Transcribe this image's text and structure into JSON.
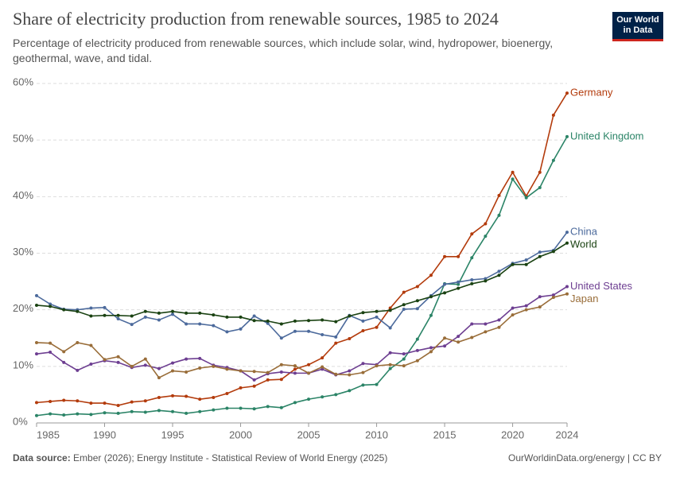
{
  "chart_data": {
    "type": "line",
    "title": "Share of electricity production from renewable sources, 1985 to 2024",
    "subtitle": "Percentage of electricity produced from renewable sources, which include solar, wind, hydropower, bioenergy, geothermal, wave, and tidal.",
    "logo": "Our World in Data",
    "source_label": "Data source:",
    "source": "Ember (2026); Energy Institute - Statistical Review of World Energy (2025)",
    "credit": "OurWorldinData.org/energy | CC BY",
    "x": [
      1985,
      1986,
      1987,
      1988,
      1989,
      1990,
      1991,
      1992,
      1993,
      1994,
      1995,
      1996,
      1997,
      1998,
      1999,
      2000,
      2001,
      2002,
      2003,
      2004,
      2005,
      2006,
      2007,
      2008,
      2009,
      2010,
      2011,
      2012,
      2013,
      2014,
      2015,
      2016,
      2017,
      2018,
      2019,
      2020,
      2021,
      2022,
      2023,
      2024
    ],
    "xlim": [
      1985,
      2024
    ],
    "xticks": [
      1985,
      1990,
      1995,
      2000,
      2005,
      2010,
      2015,
      2020,
      2024
    ],
    "ylim": [
      0,
      60
    ],
    "yticks": [
      {
        "value": 0,
        "label": "0%"
      },
      {
        "value": 10,
        "label": "10%"
      },
      {
        "value": 20,
        "label": "20%"
      },
      {
        "value": 30,
        "label": "30%"
      },
      {
        "value": 40,
        "label": "40%"
      },
      {
        "value": 50,
        "label": "50%"
      },
      {
        "value": 60,
        "label": "60%"
      }
    ],
    "grid": true,
    "series": [
      {
        "name": "Germany",
        "color": "#b33b0c",
        "values": [
          3.6,
          3.8,
          4.0,
          3.9,
          3.5,
          3.5,
          3.1,
          3.7,
          3.9,
          4.5,
          4.8,
          4.7,
          4.2,
          4.5,
          5.2,
          6.2,
          6.5,
          7.6,
          7.7,
          9.5,
          10.3,
          11.5,
          14.1,
          14.9,
          16.3,
          16.9,
          20.3,
          23.1,
          24.1,
          26.1,
          29.4,
          29.4,
          33.4,
          35.2,
          40.2,
          44.3,
          40.1,
          44.3,
          54.4,
          58.3
        ]
      },
      {
        "name": "United Kingdom",
        "color": "#2b8467",
        "values": [
          1.3,
          1.6,
          1.4,
          1.6,
          1.5,
          1.8,
          1.7,
          2.0,
          1.9,
          2.2,
          2.0,
          1.7,
          2.0,
          2.3,
          2.6,
          2.6,
          2.5,
          2.9,
          2.7,
          3.6,
          4.2,
          4.6,
          5.0,
          5.7,
          6.7,
          6.8,
          9.6,
          11.3,
          14.8,
          19.0,
          24.6,
          24.5,
          29.2,
          33.0,
          36.7,
          43.1,
          39.8,
          41.6,
          46.4,
          50.6
        ]
      },
      {
        "name": "China",
        "color": "#4c6a9c",
        "values": [
          22.5,
          21.0,
          20.1,
          20.0,
          20.3,
          20.4,
          18.4,
          17.4,
          18.7,
          18.2,
          19.2,
          17.5,
          17.5,
          17.2,
          16.1,
          16.6,
          18.9,
          17.6,
          15.0,
          16.2,
          16.2,
          15.6,
          15.2,
          19.0,
          18.0,
          18.7,
          16.8,
          20.1,
          20.2,
          22.5,
          24.5,
          24.9,
          25.3,
          25.5,
          26.8,
          28.2,
          28.8,
          30.2,
          30.5,
          33.7
        ]
      },
      {
        "name": "World",
        "color": "#1a4212",
        "values": [
          20.8,
          20.6,
          20.0,
          19.7,
          18.9,
          19.0,
          19.0,
          18.9,
          19.7,
          19.4,
          19.7,
          19.4,
          19.4,
          19.1,
          18.7,
          18.7,
          18.1,
          18.0,
          17.5,
          18.0,
          18.1,
          18.2,
          17.9,
          18.9,
          19.5,
          19.7,
          19.9,
          20.9,
          21.6,
          22.3,
          23.0,
          23.8,
          24.6,
          25.1,
          26.1,
          28.0,
          28.0,
          29.4,
          30.3,
          31.8
        ]
      },
      {
        "name": "United States",
        "color": "#6d3e91",
        "values": [
          12.2,
          12.5,
          10.7,
          9.3,
          10.4,
          11.0,
          10.7,
          9.8,
          10.2,
          9.6,
          10.6,
          11.3,
          11.4,
          10.2,
          9.8,
          9.2,
          7.6,
          8.7,
          9.0,
          8.8,
          8.8,
          9.5,
          8.5,
          9.2,
          10.5,
          10.3,
          12.4,
          12.2,
          12.8,
          13.3,
          13.6,
          15.3,
          17.5,
          17.5,
          18.2,
          20.3,
          20.7,
          22.3,
          22.6,
          24.1
        ]
      },
      {
        "name": "Japan",
        "color": "#996d39",
        "values": [
          14.2,
          14.1,
          12.6,
          14.2,
          13.7,
          11.2,
          11.7,
          10.0,
          11.3,
          8.0,
          9.2,
          9.0,
          9.7,
          10.0,
          9.5,
          9.2,
          9.1,
          8.9,
          10.3,
          10.1,
          8.8,
          9.9,
          8.6,
          8.5,
          8.9,
          10.1,
          10.3,
          10.1,
          11.0,
          12.6,
          15.0,
          14.3,
          15.1,
          16.1,
          16.9,
          19.1,
          20.0,
          20.5,
          22.2,
          22.8
        ]
      }
    ]
  }
}
